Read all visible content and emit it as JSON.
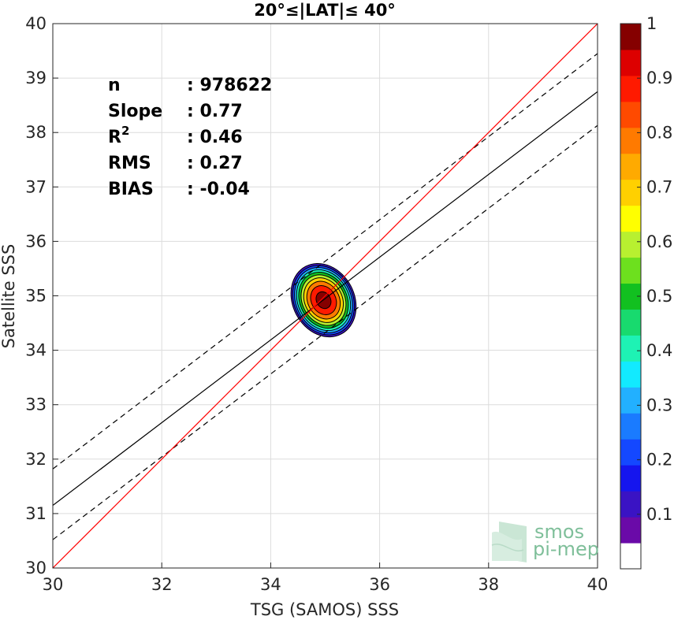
{
  "chart_data": {
    "type": "heatmap",
    "title": "20°≤|LAT|≤ 40°",
    "xlabel": "TSG (SAMOS) SSS",
    "ylabel": "Satellite SSS",
    "xlim": [
      30,
      40
    ],
    "ylim": [
      30,
      40
    ],
    "xticks": [
      "30",
      "32",
      "34",
      "36",
      "38",
      "40"
    ],
    "yticks": [
      "30",
      "31",
      "32",
      "33",
      "34",
      "35",
      "36",
      "37",
      "38",
      "39",
      "40"
    ],
    "grid": true,
    "stats": [
      {
        "label": "n",
        "value": ": 978622"
      },
      {
        "label": "Slope",
        "value": ": 0.77"
      },
      {
        "label": "R",
        "sup": "2",
        "value": ": 0.46"
      },
      {
        "label": "RMS",
        "value": ": 0.27"
      },
      {
        "label": "BIAS",
        "value": ": -0.04"
      }
    ],
    "lines": {
      "identity": {
        "x": [
          30,
          40
        ],
        "y": [
          30,
          40
        ],
        "color": "#ff0000",
        "style": "solid"
      },
      "fit": {
        "x": [
          30,
          40
        ],
        "y": [
          31.15,
          38.75
        ],
        "color": "#000000",
        "style": "solid"
      },
      "fit_upper": {
        "x": [
          30,
          40
        ],
        "y": [
          31.82,
          39.45
        ],
        "color": "#000000",
        "style": "dashed"
      },
      "fit_lower": {
        "x": [
          30,
          40
        ],
        "y": [
          30.52,
          38.13
        ],
        "color": "#000000",
        "style": "dashed"
      }
    },
    "density": {
      "center": [
        34.97,
        34.92
      ],
      "outer_radius": [
        0.58,
        0.72
      ],
      "angle_deg": 28,
      "levels": [
        0.05,
        0.15,
        0.25,
        0.35,
        0.45,
        0.55,
        0.65,
        0.75,
        0.85,
        0.95
      ]
    },
    "colorbar": {
      "ticks": [
        "0.1",
        "0.2",
        "0.3",
        "0.4",
        "0.5",
        "0.6",
        "0.7",
        "0.8",
        "0.9",
        "1"
      ],
      "colors": [
        "#ffffff",
        "#6a0aa8",
        "#3a13c4",
        "#1515ee",
        "#1448ff",
        "#1a7bff",
        "#22b0ff",
        "#12eaff",
        "#1ef2b4",
        "#18da6e",
        "#12c020",
        "#6de01e",
        "#b8f030",
        "#ffff00",
        "#ffd000",
        "#ffaa00",
        "#ff7a00",
        "#ff4a00",
        "#ff1a00",
        "#dd0000",
        "#850000"
      ]
    }
  },
  "watermark": {
    "line1": "smos",
    "line2": "pi-mep"
  }
}
